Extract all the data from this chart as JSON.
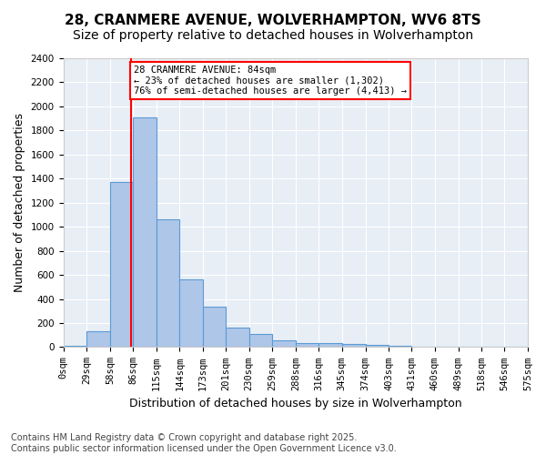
{
  "title1": "28, CRANMERE AVENUE, WOLVERHAMPTON, WV6 8TS",
  "title2": "Size of property relative to detached houses in Wolverhampton",
  "xlabel": "Distribution of detached houses by size in Wolverhampton",
  "ylabel": "Number of detached properties",
  "bar_color": "#aec6e8",
  "bar_edge_color": "#5b9bd5",
  "bg_color": "#e8eef6",
  "grid_color": "#ffffff",
  "vline_x": 84,
  "vline_color": "red",
  "annotation_text": "28 CRANMERE AVENUE: 84sqm\n← 23% of detached houses are smaller (1,302)\n76% of semi-detached houses are larger (4,413) →",
  "bins": [
    0,
    29,
    58,
    86,
    115,
    144,
    173,
    201,
    230,
    259,
    288,
    316,
    345,
    374,
    403,
    431,
    460,
    489,
    518,
    546,
    575
  ],
  "counts": [
    10,
    130,
    1370,
    1910,
    1060,
    560,
    335,
    165,
    110,
    60,
    35,
    30,
    25,
    20,
    10,
    5,
    5,
    5,
    5,
    5
  ],
  "tick_labels": [
    "0sqm",
    "29sqm",
    "58sqm",
    "86sqm",
    "115sqm",
    "144sqm",
    "173sqm",
    "201sqm",
    "230sqm",
    "259sqm",
    "288sqm",
    "316sqm",
    "345sqm",
    "374sqm",
    "403sqm",
    "431sqm",
    "460sqm",
    "489sqm",
    "518sqm",
    "546sqm",
    "575sqm"
  ],
  "ylim": [
    0,
    2400
  ],
  "yticks": [
    0,
    200,
    400,
    600,
    800,
    1000,
    1200,
    1400,
    1600,
    1800,
    2000,
    2200,
    2400
  ],
  "footer": "Contains HM Land Registry data © Crown copyright and database right 2025.\nContains public sector information licensed under the Open Government Licence v3.0.",
  "title1_fontsize": 11,
  "title2_fontsize": 10,
  "xlabel_fontsize": 9,
  "ylabel_fontsize": 9,
  "tick_fontsize": 7.5,
  "footer_fontsize": 7
}
